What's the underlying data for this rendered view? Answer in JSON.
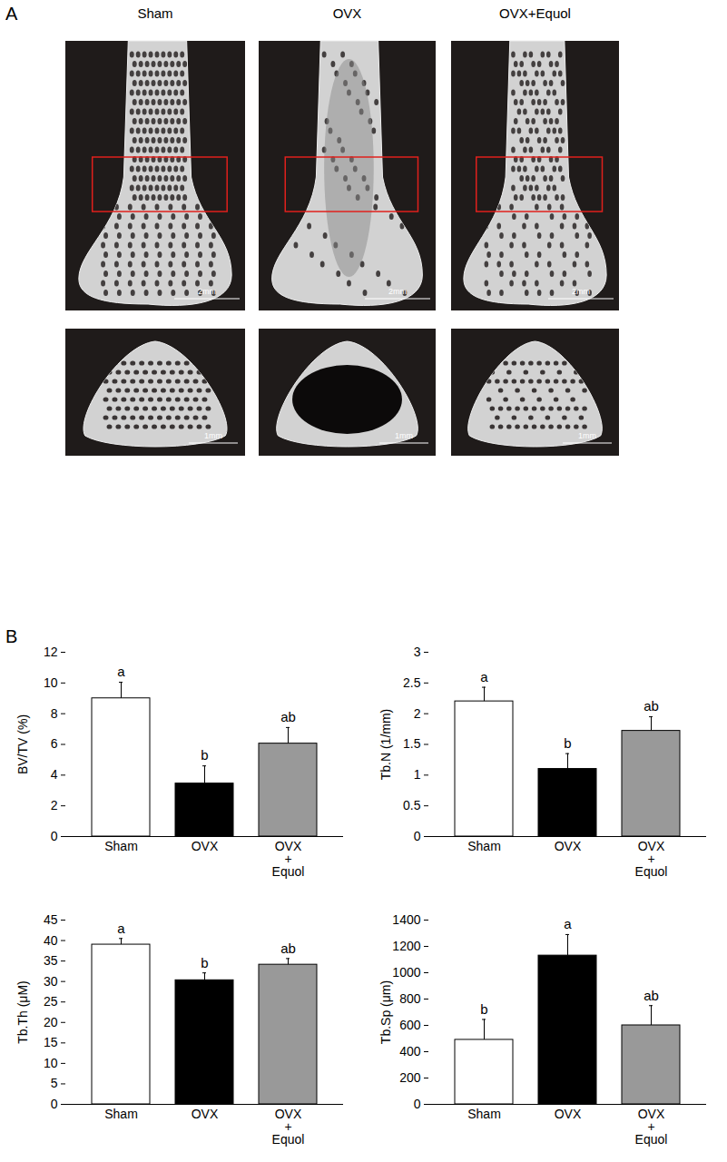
{
  "panel_a": {
    "label": "A",
    "columns": [
      "Sham",
      "OVX",
      "OVX+Equol"
    ],
    "scale_bars": [
      "2mm",
      "1mm"
    ]
  },
  "panel_b_label": "B",
  "chart_data": [
    {
      "type": "bar",
      "y_label": "BV/TV (%)",
      "categories": [
        "Sham",
        "OVX",
        "OVX\n+\nEquol"
      ],
      "values": [
        9.0,
        3.45,
        6.05
      ],
      "errors": [
        1.05,
        1.15,
        1.05
      ],
      "annotations": [
        "a",
        "b",
        "ab"
      ],
      "colors": [
        "#ffffff",
        "#000000",
        "#999999"
      ],
      "ylim": [
        0,
        12
      ],
      "yticks": [
        0,
        2,
        4,
        6,
        8,
        10,
        12
      ],
      "grid": false
    },
    {
      "type": "bar",
      "y_label": "Tb.N (1/mm)",
      "categories": [
        "Sham",
        "OVX",
        "OVX\n+\nEquol"
      ],
      "values": [
        2.2,
        1.1,
        1.72
      ],
      "errors": [
        0.23,
        0.25,
        0.23
      ],
      "annotations": [
        "a",
        "b",
        "ab"
      ],
      "colors": [
        "#ffffff",
        "#000000",
        "#999999"
      ],
      "ylim": [
        0,
        3
      ],
      "yticks": [
        0,
        0.5,
        1,
        1.5,
        2,
        2.5,
        3
      ],
      "grid": false
    },
    {
      "type": "bar",
      "y_label": "Tb.Th (μM)",
      "categories": [
        "Sham",
        "OVX",
        "OVX\n+\nEquol"
      ],
      "values": [
        39.0,
        30.3,
        34.1
      ],
      "errors": [
        1.5,
        1.8,
        1.5
      ],
      "annotations": [
        "a",
        "b",
        "ab"
      ],
      "colors": [
        "#ffffff",
        "#000000",
        "#999999"
      ],
      "ylim": [
        0,
        45
      ],
      "yticks": [
        0,
        5,
        10,
        15,
        20,
        25,
        30,
        35,
        40,
        45
      ],
      "grid": false
    },
    {
      "type": "bar",
      "y_label": "Tb.Sp (μm)",
      "categories": [
        "Sham",
        "OVX",
        "OVX\n+\nEquol"
      ],
      "values": [
        490,
        1130,
        600
      ],
      "errors": [
        155,
        160,
        150
      ],
      "annotations": [
        "b",
        "a",
        "ab"
      ],
      "colors": [
        "#ffffff",
        "#000000",
        "#999999"
      ],
      "ylim": [
        0,
        1400
      ],
      "yticks": [
        0,
        200,
        400,
        600,
        800,
        1000,
        1200,
        1400
      ],
      "grid": false
    }
  ]
}
